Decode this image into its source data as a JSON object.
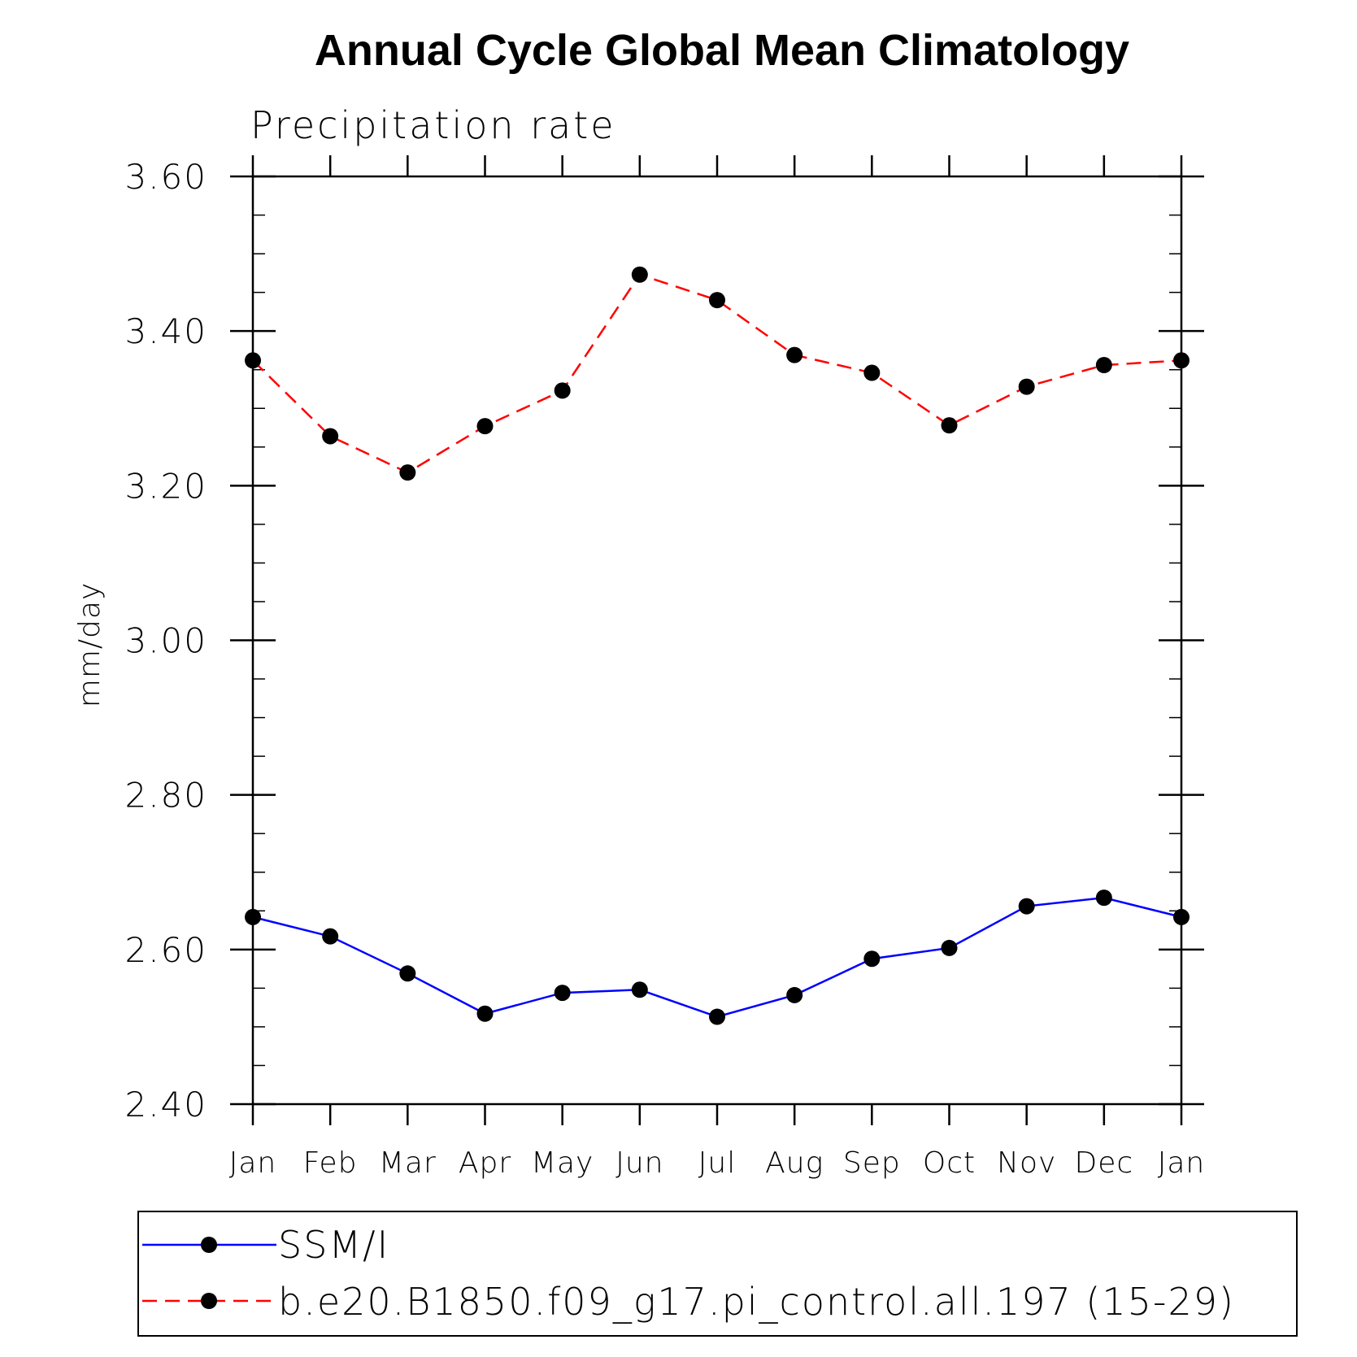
{
  "chart_data": {
    "type": "line",
    "title": "Annual Cycle Global Mean Climatology",
    "subtitle": "Precipitation rate",
    "xlabel": "",
    "ylabel": "mm/day",
    "categories": [
      "Jan",
      "Feb",
      "Mar",
      "Apr",
      "May",
      "Jun",
      "Jul",
      "Aug",
      "Sep",
      "Oct",
      "Nov",
      "Dec",
      "Jan"
    ],
    "ylim": [
      2.4,
      3.6
    ],
    "yticks": [
      "2.40",
      "2.60",
      "2.80",
      "3.00",
      "3.20",
      "3.40",
      "3.60"
    ],
    "legend_position": "bottom",
    "grid": false,
    "series": [
      {
        "name": "SSM/I",
        "color": "#0000ff",
        "line_style": "solid",
        "marker": "filled-circle",
        "values": [
          2.642,
          2.617,
          2.569,
          2.517,
          2.544,
          2.548,
          2.513,
          2.541,
          2.588,
          2.602,
          2.656,
          2.667,
          2.642
        ]
      },
      {
        "name": "b.e20.B1850.f09_g17.pi_control.all.197 (15-29)",
        "color": "#ff0000",
        "line_style": "dashed",
        "marker": "filled-circle",
        "values": [
          3.362,
          3.264,
          3.217,
          3.277,
          3.323,
          3.473,
          3.44,
          3.369,
          3.346,
          3.278,
          3.328,
          3.356,
          3.362
        ]
      }
    ]
  }
}
